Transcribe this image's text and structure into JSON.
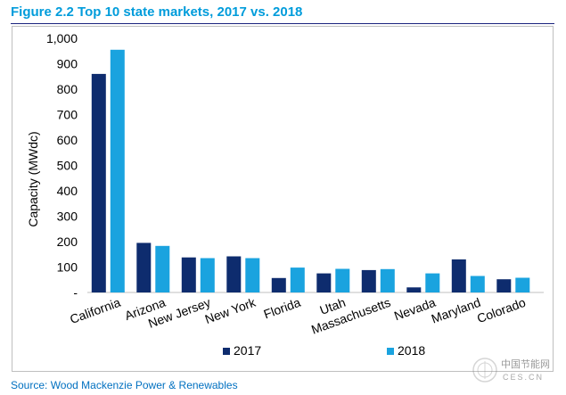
{
  "title": "Figure 2.2 Top 10 state markets, 2017 vs. 2018",
  "source": "Source: Wood Mackenzie Power & Renewables",
  "watermark_text": "中国节能网",
  "watermark_subtext": "CES.CN",
  "colors": {
    "series_2017": "#0e2c6e",
    "series_2018": "#1aa3df",
    "title": "#009cdb",
    "source": "#0070c0"
  },
  "chart_data": {
    "type": "bar",
    "ylabel": "Capacity (MWdc)",
    "xlabel": "",
    "ylim": [
      0,
      1000
    ],
    "yticks": [
      0,
      100,
      200,
      300,
      400,
      500,
      600,
      700,
      800,
      900,
      1000
    ],
    "ytick_labels": [
      "-",
      "100",
      "200",
      "300",
      "400",
      "500",
      "600",
      "700",
      "800",
      "900",
      "1,000"
    ],
    "categories": [
      "California",
      "Arizona",
      "New Jersey",
      "New York",
      "Florida",
      "Utah",
      "Massachusetts",
      "Nevada",
      "Maryland",
      "Colorado"
    ],
    "series": [
      {
        "name": "2017",
        "values": [
          860,
          195,
          138,
          142,
          57,
          75,
          88,
          20,
          130,
          52
        ]
      },
      {
        "name": "2018",
        "values": [
          955,
          183,
          135,
          135,
          98,
          93,
          92,
          75,
          65,
          58
        ]
      }
    ],
    "legend_position": "bottom-center",
    "grid": false
  }
}
